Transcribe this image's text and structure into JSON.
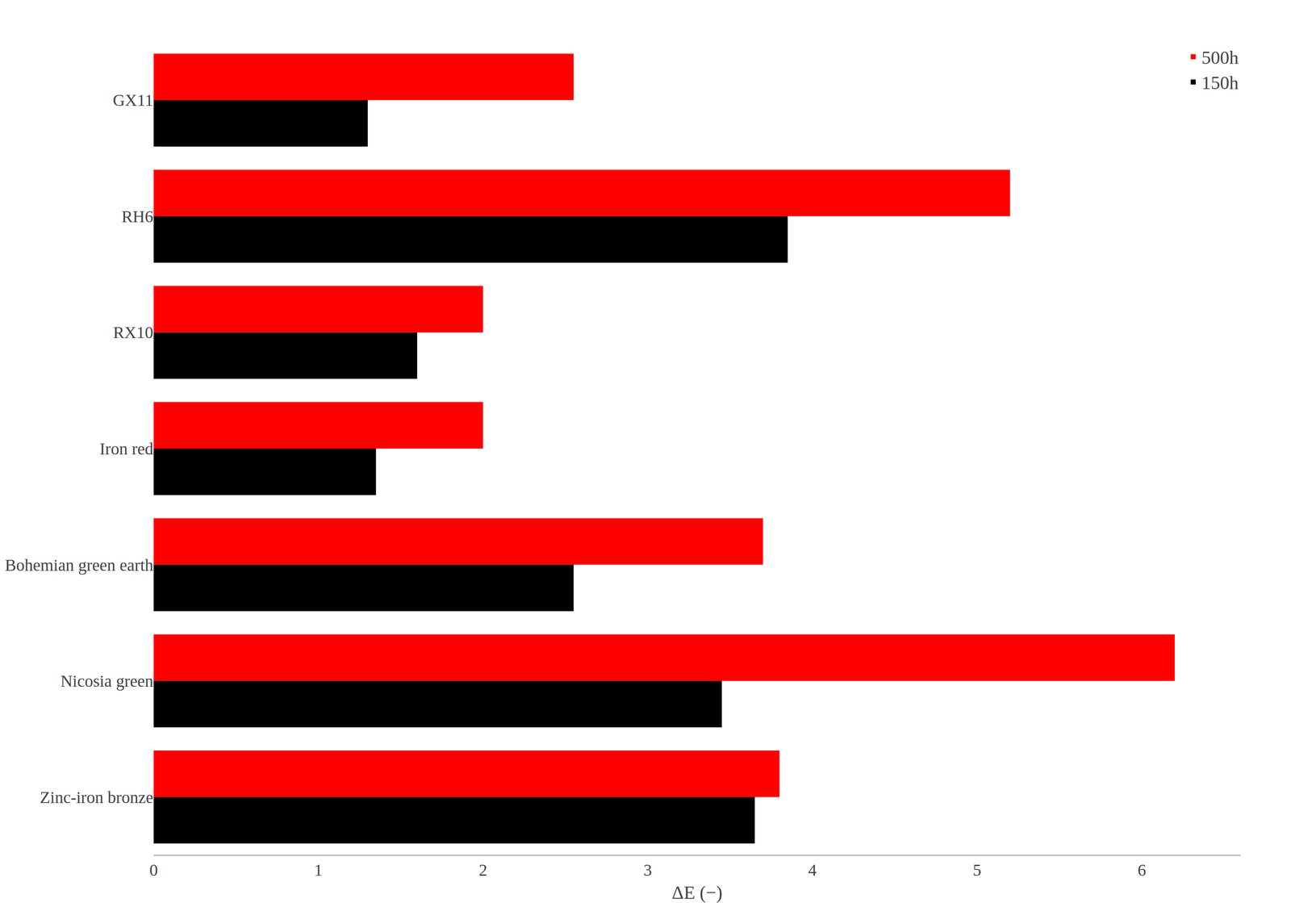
{
  "chart_data": {
    "type": "bar",
    "orientation": "horizontal",
    "categories": [
      "GX11",
      "RH6",
      "RX10",
      "Iron red",
      "Bohemian green earth",
      "Nicosia green",
      "Zinc-iron bronze"
    ],
    "series": [
      {
        "name": "500h",
        "color": "#ff0000",
        "values": [
          2.55,
          5.2,
          2.0,
          2.0,
          3.7,
          6.2,
          3.8
        ]
      },
      {
        "name": "150h",
        "color": "#000000",
        "values": [
          1.3,
          3.85,
          1.6,
          1.35,
          2.55,
          3.45,
          3.65
        ]
      }
    ],
    "xlabel": "ΔE (−)",
    "xlim": [
      0,
      6.6
    ],
    "xticks": [
      0,
      1,
      2,
      3,
      4,
      5,
      6
    ],
    "grid": false,
    "legend": "upper right"
  }
}
